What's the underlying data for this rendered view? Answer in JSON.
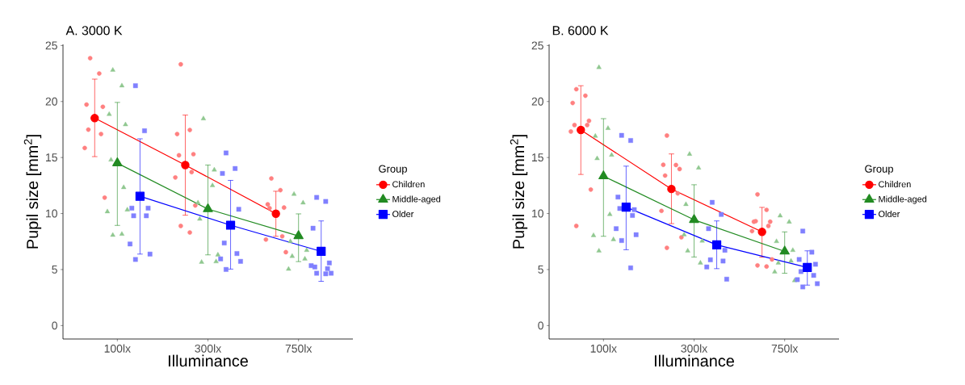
{
  "chart_data": [
    {
      "type": "line",
      "title": "A. 3000 K",
      "xlabel": "Illuminance",
      "ylabel": "Pupil size [mm$^{2}$]",
      "legend_title": "Group",
      "legend": "right",
      "categories": [
        "100lx",
        "300lx",
        "750lx"
      ],
      "ylim": [
        -1.2,
        25.1
      ],
      "yticks": [
        0,
        5,
        10,
        15,
        20,
        25
      ],
      "series": [
        {
          "type": "scatter",
          "color": "#ff8080",
          "marker": "circle",
          "x": [
            "100lx",
            "100lx",
            "100lx",
            "100lx",
            "100lx",
            "100lx",
            "100lx",
            "100lx",
            "300lx",
            "300lx",
            "300lx",
            "300lx",
            "300lx",
            "300lx",
            "300lx",
            "300lx",
            "300lx",
            "300lx",
            "750lx",
            "750lx",
            "750lx",
            "750lx",
            "750lx",
            "750lx",
            "750lx",
            "750lx"
          ],
          "values": [
            23.87,
            22.5,
            19.73,
            19.53,
            17.49,
            17.1,
            15.85,
            11.42,
            23.32,
            17.46,
            17.1,
            15.3,
            15.2,
            13.7,
            13.22,
            10.72,
            8.89,
            8.31,
            13.13,
            12.09,
            10.82,
            10.53,
            10.48,
            7.97,
            7.68,
            6.55
          ]
        },
        {
          "type": "scatter",
          "color": "#90c890",
          "marker": "triangle",
          "x": [
            "100lx",
            "100lx",
            "100lx",
            "100lx",
            "100lx",
            "100lx",
            "100lx",
            "100lx",
            "100lx",
            "100lx",
            "300lx",
            "300lx",
            "300lx",
            "300lx",
            "300lx",
            "300lx",
            "300lx",
            "300lx",
            "750lx",
            "750lx",
            "750lx",
            "750lx",
            "750lx",
            "750lx",
            "750lx"
          ],
          "values": [
            22.81,
            21.41,
            18.86,
            17.94,
            14.79,
            12.33,
            10.17,
            10.33,
            8.07,
            8.16,
            18.47,
            12.5,
            9.51,
            5.71,
            5.66,
            13.9,
            10.96,
            6.31,
            11.73,
            10.96,
            7.51,
            6.72,
            6.19,
            5.95,
            5.04
          ]
        },
        {
          "type": "scatter",
          "color": "#8080ff",
          "marker": "square",
          "x": [
            "100lx",
            "100lx",
            "100lx",
            "100lx",
            "100lx",
            "100lx",
            "100lx",
            "100lx",
            "100lx",
            "300lx",
            "300lx",
            "300lx",
            "300lx",
            "300lx",
            "300lx",
            "300lx",
            "300lx",
            "300lx",
            "750lx",
            "750lx",
            "750lx",
            "750lx",
            "750lx",
            "750lx",
            "750lx",
            "750lx",
            "750lx",
            "750lx"
          ],
          "values": [
            21.41,
            17.39,
            10.48,
            10.48,
            9.8,
            9.8,
            7.28,
            6.38,
            5.9,
            15.41,
            14.02,
            13.58,
            10.38,
            7.37,
            6.43,
            5.95,
            5.73,
            5.01,
            11.44,
            11.08,
            8.69,
            5.59,
            5.23,
            5.08,
            5.35,
            4.67,
            4.67,
            4.62
          ]
        },
        {
          "name": "Children",
          "color": "#ff0000",
          "marker": "circle",
          "values": [
            18.52,
            14.33,
            9.99
          ],
          "errors": [
            [
              15.08,
              22.0
            ],
            [
              9.85,
              18.79
            ],
            [
              7.97,
              11.99
            ]
          ]
        },
        {
          "name": "Middle-aged",
          "color": "#228b22",
          "marker": "triangle",
          "values": [
            14.5,
            10.4,
            8.0
          ],
          "errors": [
            [
              8.94,
              19.92
            ],
            [
              6.31,
              14.33
            ],
            [
              5.71,
              9.97
            ]
          ]
        },
        {
          "name": "Older",
          "color": "#0000ff",
          "marker": "square",
          "values": [
            11.54,
            8.96,
            6.62
          ],
          "errors": [
            [
              6.38,
              16.67
            ],
            [
              5.04,
              12.96
            ],
            [
              3.95,
              9.34
            ]
          ]
        }
      ]
    },
    {
      "type": "line",
      "title": "B. 6000 K",
      "xlabel": "Illuminance",
      "ylabel": "Pupil size [mm$^{2}$]",
      "legend_title": "Group",
      "legend": "right",
      "categories": [
        "100lx",
        "300lx",
        "750lx"
      ],
      "ylim": [
        -1.2,
        25.1
      ],
      "yticks": [
        0,
        5,
        10,
        15,
        20,
        25
      ],
      "series": [
        {
          "type": "scatter",
          "color": "#ff8080",
          "marker": "circle",
          "x": [
            "100lx",
            "100lx",
            "100lx",
            "100lx",
            "100lx",
            "100lx",
            "100lx",
            "100lx",
            "100lx",
            "300lx",
            "300lx",
            "300lx",
            "300lx",
            "300lx",
            "300lx",
            "300lx",
            "300lx",
            "300lx",
            "750lx",
            "750lx",
            "750lx",
            "750lx",
            "750lx",
            "750lx",
            "750lx",
            "750lx",
            "750lx",
            "750lx"
          ],
          "values": [
            21.1,
            20.52,
            19.87,
            18.28,
            17.9,
            17.9,
            17.32,
            12.14,
            8.89,
            16.96,
            14.33,
            14.35,
            13.97,
            13.39,
            11.8,
            10.24,
            7.88,
            6.94,
            11.71,
            10.33,
            9.27,
            9.27,
            9.32,
            8.89,
            8.43,
            5.9,
            5.37,
            5.27
          ]
        },
        {
          "type": "scatter",
          "color": "#90c890",
          "marker": "triangle",
          "x": [
            "100lx",
            "100lx",
            "100lx",
            "100lx",
            "100lx",
            "100lx",
            "100lx",
            "100lx",
            "100lx",
            "300lx",
            "300lx",
            "300lx",
            "300lx",
            "300lx",
            "300lx",
            "300lx",
            "750lx",
            "750lx",
            "750lx",
            "750lx",
            "750lx",
            "750lx",
            "750lx",
            "750lx"
          ],
          "values": [
            23.05,
            17.61,
            16.91,
            15.22,
            14.91,
            9.92,
            8.04,
            7.68,
            6.67,
            15.3,
            14.07,
            10.82,
            7.56,
            6.67,
            5.59,
            8.11,
            9.8,
            9.25,
            7.51,
            6.72,
            5.59,
            5.76,
            4.79,
            4.02
          ]
        },
        {
          "type": "scatter",
          "color": "#8080ff",
          "marker": "square",
          "x": [
            "100lx",
            "100lx",
            "100lx",
            "100lx",
            "100lx",
            "100lx",
            "100lx",
            "100lx",
            "100lx",
            "100lx",
            "300lx",
            "300lx",
            "300lx",
            "300lx",
            "300lx",
            "300lx",
            "300lx",
            "300lx",
            "750lx",
            "750lx",
            "750lx",
            "750lx",
            "750lx",
            "750lx",
            "750lx",
            "750lx",
            "750lx"
          ],
          "values": [
            16.98,
            16.52,
            11.47,
            10.35,
            10.45,
            9.83,
            8.65,
            8.11,
            7.59,
            5.15,
            11.0,
            9.92,
            8.65,
            6.72,
            5.87,
            5.76,
            5.23,
            4.14,
            8.43,
            6.55,
            5.9,
            5.47,
            4.82,
            4.48,
            4.1,
            3.74,
            3.45
          ]
        },
        {
          "name": "Children",
          "color": "#ff0000",
          "marker": "circle",
          "values": [
            17.46,
            12.19,
            8.36
          ],
          "errors": [
            [
              13.49,
              21.41
            ],
            [
              9.1,
              15.32
            ],
            [
              6.1,
              10.55
            ]
          ]
        },
        {
          "name": "Middle-aged",
          "color": "#228b22",
          "marker": "triangle",
          "values": [
            13.34,
            9.44,
            6.62
          ],
          "errors": [
            [
              7.97,
              18.47
            ],
            [
              6.12,
              12.57
            ],
            [
              4.67,
              8.36
            ]
          ]
        },
        {
          "name": "Older",
          "color": "#0000ff",
          "marker": "square",
          "values": [
            10.57,
            7.2,
            5.18
          ],
          "errors": [
            [
              6.77,
              14.23
            ],
            [
              5.08,
              9.34
            ],
            [
              3.61,
              6.67
            ]
          ]
        }
      ]
    }
  ]
}
